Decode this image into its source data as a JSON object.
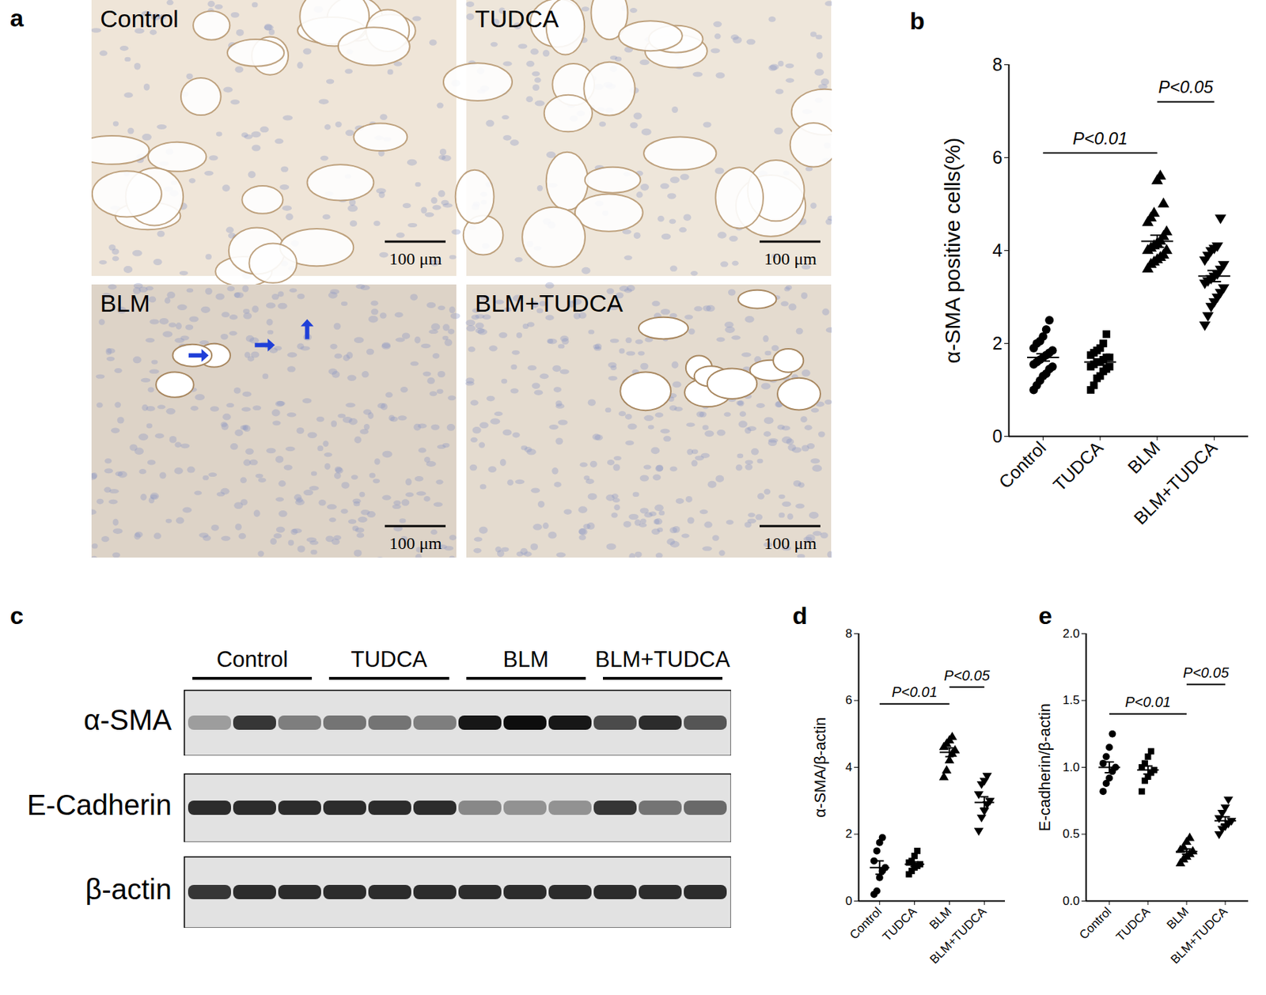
{
  "panel_a": {
    "label": "a",
    "images": [
      "Control",
      "TUDCA",
      "BLM",
      "BLM+TUDCA"
    ],
    "scale_bar": "100 μm"
  },
  "chart_data": [
    {
      "type": "scatter",
      "title": "b",
      "y_label": "α-SMA positive cells(%)",
      "ylim": [
        0,
        8
      ],
      "yticks": [
        0,
        2,
        4,
        6,
        8
      ],
      "color": "#000000",
      "series": [
        {
          "name": "Control",
          "marker": "circle",
          "values": [
            1.0,
            1.1,
            1.2,
            1.3,
            1.35,
            1.45,
            1.5,
            1.55,
            1.6,
            1.65,
            1.7,
            1.75,
            1.8,
            1.85,
            1.9,
            2.0,
            2.05,
            2.15,
            2.3,
            2.5
          ],
          "mean": 1.7,
          "sem": 0.08
        },
        {
          "name": "TUDCA",
          "marker": "square",
          "values": [
            1.0,
            1.1,
            1.25,
            1.3,
            1.4,
            1.45,
            1.5,
            1.5,
            1.55,
            1.6,
            1.6,
            1.65,
            1.7,
            1.7,
            1.75,
            1.8,
            1.85,
            1.9,
            2.0,
            2.2
          ],
          "mean": 1.6,
          "sem": 0.06
        },
        {
          "name": "BLM",
          "marker": "triangle",
          "values": [
            3.6,
            3.7,
            3.75,
            3.8,
            3.85,
            3.9,
            4.0,
            4.0,
            4.05,
            4.1,
            4.15,
            4.2,
            4.3,
            4.4,
            4.6,
            4.7,
            4.8,
            5.5,
            5.6,
            5.0
          ],
          "mean": 4.2,
          "sem": 0.13
        },
        {
          "name": "BLM+TUDCA",
          "marker": "triangle-down",
          "values": [
            2.4,
            2.6,
            2.8,
            2.9,
            3.0,
            3.1,
            3.2,
            3.3,
            3.35,
            3.4,
            3.45,
            3.5,
            3.6,
            3.7,
            3.8,
            3.9,
            4.0,
            4.05,
            4.1,
            4.7
          ],
          "mean": 3.45,
          "sem": 0.12
        }
      ],
      "annotations": [
        {
          "text": "P<0.01",
          "from": "Control",
          "to": "BLM",
          "y": 6.1
        },
        {
          "text": "P<0.05",
          "from": "BLM",
          "to": "BLM+TUDCA",
          "y": 7.2
        }
      ]
    },
    {
      "type": "scatter",
      "title": "d",
      "y_label": "α-SMA/β-actin",
      "ylim": [
        0,
        8
      ],
      "yticks": [
        0,
        2,
        4,
        6,
        8
      ],
      "color": "#000000",
      "series": [
        {
          "name": "Control",
          "marker": "circle",
          "values": [
            0.2,
            0.3,
            0.7,
            0.9,
            1.0,
            1.2,
            1.5,
            1.75,
            1.9
          ],
          "mean": 1.0,
          "sem": 0.2
        },
        {
          "name": "TUDCA",
          "marker": "square",
          "values": [
            0.8,
            0.9,
            1.0,
            1.05,
            1.1,
            1.15,
            1.2,
            1.35,
            1.5
          ],
          "mean": 1.1,
          "sem": 0.07
        },
        {
          "name": "BLM",
          "marker": "triangle",
          "values": [
            3.7,
            3.9,
            4.2,
            4.4,
            4.5,
            4.6,
            4.7,
            4.8,
            4.9
          ],
          "mean": 4.45,
          "sem": 0.13
        },
        {
          "name": "BLM+TUDCA",
          "marker": "triangle-down",
          "values": [
            2.1,
            2.5,
            2.7,
            2.9,
            3.0,
            3.2,
            3.5,
            3.6,
            3.75
          ],
          "mean": 2.95,
          "sem": 0.17
        }
      ],
      "annotations": [
        {
          "text": "P<0.01",
          "from": "Control",
          "to": "BLM",
          "y": 5.9
        },
        {
          "text": "P<0.05",
          "from": "BLM",
          "to": "BLM+TUDCA",
          "y": 6.4
        }
      ]
    },
    {
      "type": "scatter",
      "title": "e",
      "y_label": "E-cadherin/β-actin",
      "ylim": [
        0,
        2
      ],
      "yticks": [
        {
          "value": 0,
          "label": "0.0"
        },
        0.5,
        {
          "value": 1,
          "label": "1.0"
        },
        1.5,
        {
          "value": 2,
          "label": "2.0"
        }
      ],
      "color": "#000000",
      "series": [
        {
          "name": "Control",
          "marker": "circle",
          "values": [
            0.82,
            0.88,
            0.92,
            0.97,
            1.0,
            1.03,
            1.08,
            1.15,
            1.25
          ],
          "mean": 1.0,
          "sem": 0.04
        },
        {
          "name": "TUDCA",
          "marker": "square",
          "values": [
            0.82,
            0.9,
            0.93,
            0.96,
            0.98,
            1.0,
            1.03,
            1.08,
            1.12
          ],
          "mean": 0.98,
          "sem": 0.03
        },
        {
          "name": "BLM",
          "marker": "triangle",
          "values": [
            0.28,
            0.31,
            0.33,
            0.35,
            0.37,
            0.38,
            0.4,
            0.44,
            0.47
          ],
          "mean": 0.37,
          "sem": 0.02
        },
        {
          "name": "BLM+TUDCA",
          "marker": "triangle-down",
          "values": [
            0.5,
            0.54,
            0.56,
            0.58,
            0.6,
            0.62,
            0.66,
            0.7,
            0.76
          ],
          "mean": 0.6,
          "sem": 0.03
        }
      ],
      "annotations": [
        {
          "text": "P<0.01",
          "from": "Control",
          "to": "BLM",
          "y": 1.4
        },
        {
          "text": "P<0.05",
          "from": "BLM",
          "to": "BLM+TUDCA",
          "y": 1.62
        }
      ]
    }
  ],
  "panel_c": {
    "label": "c",
    "groups": [
      {
        "label": "Control",
        "lanes": 3
      },
      {
        "label": "TUDCA",
        "lanes": 3
      },
      {
        "label": "BLM",
        "lanes": 3
      },
      {
        "label": "BLM+TUDCA",
        "lanes": 3
      }
    ],
    "intensity_range": [
      0,
      1
    ],
    "rows": [
      {
        "name": "α-SMA",
        "band_intensity": [
          0.3,
          0.8,
          0.45,
          0.5,
          0.5,
          0.45,
          0.95,
          1.0,
          0.95,
          0.7,
          0.85,
          0.65
        ]
      },
      {
        "name": "E-Cadherin",
        "band_intensity": [
          0.85,
          0.85,
          0.85,
          0.85,
          0.85,
          0.85,
          0.4,
          0.35,
          0.35,
          0.8,
          0.5,
          0.55
        ]
      },
      {
        "name": "β-actin",
        "band_intensity": [
          0.8,
          0.85,
          0.85,
          0.85,
          0.85,
          0.85,
          0.85,
          0.85,
          0.85,
          0.85,
          0.85,
          0.85
        ]
      }
    ]
  }
}
